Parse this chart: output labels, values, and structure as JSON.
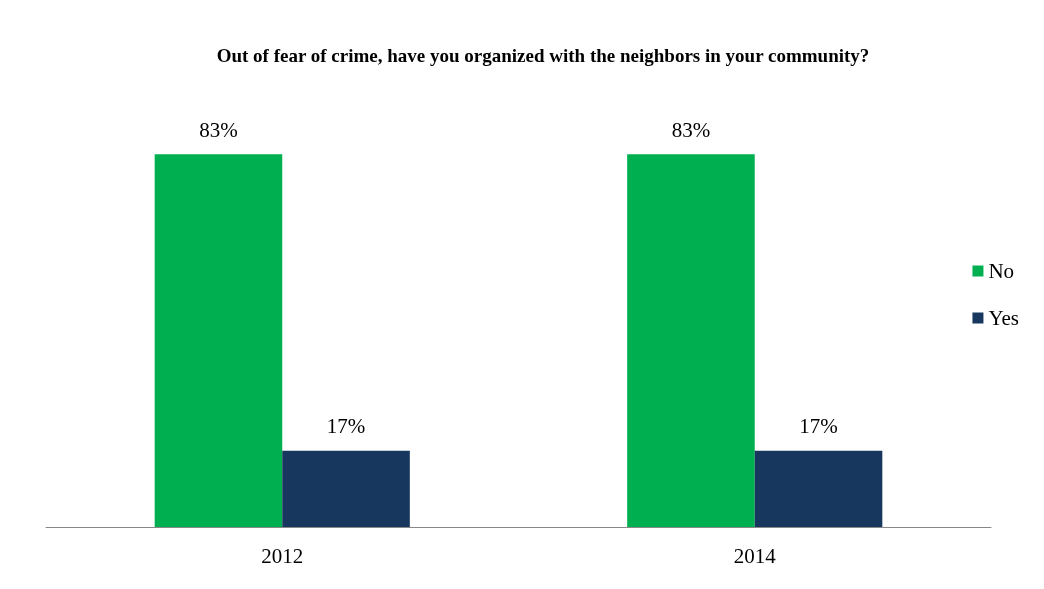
{
  "chart_data": {
    "type": "bar",
    "title": "Out of fear of crime, have you organized with the neighbors in your community?",
    "categories": [
      "2012",
      "2014"
    ],
    "series": [
      {
        "name": "No",
        "color": "#00b050",
        "values": [
          83,
          83
        ],
        "value_labels": [
          "83%",
          "83%"
        ]
      },
      {
        "name": "Yes",
        "color": "#17375e",
        "values": [
          17,
          17
        ],
        "value_labels": [
          "17%",
          "17%"
        ]
      }
    ],
    "legend": "right",
    "grid": false
  }
}
